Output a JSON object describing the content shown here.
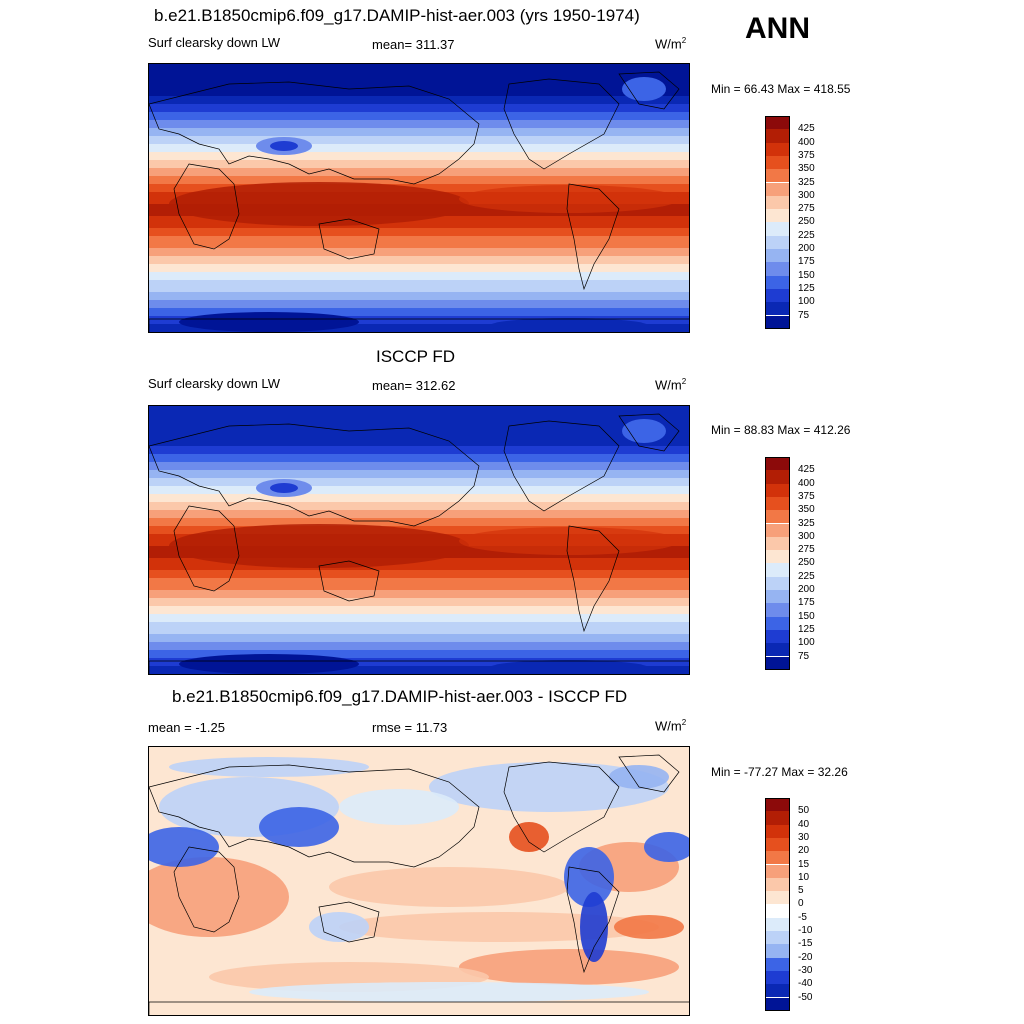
{
  "season": "ANN",
  "panels": [
    {
      "id": "model",
      "title": "b.e21.B1850cmip6.f09_g17.DAMIP-hist-aer.003 (yrs 1950-1974)",
      "left_label": "Surf clearsky down LW",
      "center_label": "mean= 311.37",
      "units": "W/m",
      "units_sup": "2",
      "minmax": "Min =  66.43 Max = 418.55",
      "colorbar": {
        "labels": [
          "425",
          "400",
          "375",
          "350",
          "325",
          "300",
          "275",
          "250",
          "225",
          "200",
          "175",
          "150",
          "125",
          "100",
          "75"
        ],
        "colors": [
          "#8c0a0a",
          "#b21e05",
          "#d2320a",
          "#e6501e",
          "#f27846",
          "#f7a07a",
          "#fbc8aa",
          "#fde6d2",
          "#dcebfa",
          "#bcd2f7",
          "#96b4f2",
          "#6e8cec",
          "#3c64e6",
          "#1e3cd2",
          "#0a28b4",
          "#001496"
        ]
      }
    },
    {
      "id": "obs",
      "title": "ISCCP FD",
      "left_label": "Surf clearsky down LW",
      "center_label": "mean= 312.62",
      "units": "W/m",
      "units_sup": "2",
      "minmax": "Min =  88.83 Max = 412.26",
      "colorbar": {
        "labels": [
          "425",
          "400",
          "375",
          "350",
          "325",
          "300",
          "275",
          "250",
          "225",
          "200",
          "175",
          "150",
          "125",
          "100",
          "75"
        ],
        "colors": [
          "#8c0a0a",
          "#b21e05",
          "#d2320a",
          "#e6501e",
          "#f27846",
          "#f7a07a",
          "#fbc8aa",
          "#fde6d2",
          "#dcebfa",
          "#bcd2f7",
          "#96b4f2",
          "#6e8cec",
          "#3c64e6",
          "#1e3cd2",
          "#0a28b4",
          "#001496"
        ]
      }
    },
    {
      "id": "diff",
      "title": "b.e21.B1850cmip6.f09_g17.DAMIP-hist-aer.003 - ISCCP FD",
      "left_label": "mean =  -1.25",
      "center_label": "rmse =  11.73",
      "units": "W/m",
      "units_sup": "2",
      "minmax": "Min = -77.27 Max =  32.26",
      "colorbar": {
        "labels": [
          "50",
          "40",
          "30",
          "20",
          "15",
          "10",
          "5",
          "0",
          "-5",
          "-10",
          "-15",
          "-20",
          "-30",
          "-40",
          "-50"
        ],
        "colors": [
          "#8c0a0a",
          "#b21e05",
          "#d2320a",
          "#e6501e",
          "#f27846",
          "#f7a07a",
          "#fbc8aa",
          "#fde6d2",
          "#ffffff",
          "#dcebfa",
          "#bcd2f7",
          "#96b4f2",
          "#3c64e6",
          "#1e3cd2",
          "#0a28b4",
          "#001496"
        ]
      }
    }
  ]
}
